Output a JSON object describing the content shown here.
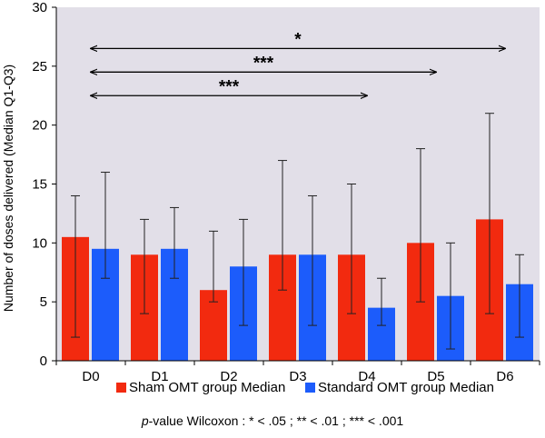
{
  "chart_data": {
    "type": "bar",
    "ylabel": "Number of doses delivered (Median Q1-Q3)",
    "ylim": [
      0,
      30
    ],
    "yticks": [
      0,
      5,
      10,
      15,
      20,
      25,
      30
    ],
    "categories": [
      "D0",
      "D1",
      "D2",
      "D3",
      "D4",
      "D5",
      "D6"
    ],
    "background_color": "#e2dfe8",
    "series": [
      {
        "name": "Sham OMT group Median",
        "color": "#f22a0f",
        "values": [
          10.5,
          9,
          6,
          9,
          9,
          10,
          12
        ],
        "q1": [
          2,
          4,
          5,
          6,
          4,
          5,
          4
        ],
        "q3": [
          14,
          12,
          11,
          17,
          15,
          18,
          21
        ]
      },
      {
        "name": "Standard OMT group Median",
        "color": "#1c5cfb",
        "values": [
          9.5,
          9.5,
          8,
          9,
          4.5,
          5.5,
          6.5
        ],
        "q1": [
          7,
          7,
          3,
          3,
          3,
          1,
          2
        ],
        "q3": [
          16,
          13,
          12,
          14,
          7,
          10,
          9
        ]
      }
    ],
    "annotations": [
      {
        "from": "D0",
        "to": "D6",
        "label": "*",
        "y": 26.5
      },
      {
        "from": "D0",
        "to": "D5",
        "label": "***",
        "y": 24.5
      },
      {
        "from": "D0",
        "to": "D4",
        "label": "***",
        "y": 22.5
      }
    ],
    "footnote": {
      "italic": "p",
      "text": "-value Wilcoxon : * < .05 ; ** < .01 ; *** < .001"
    }
  }
}
